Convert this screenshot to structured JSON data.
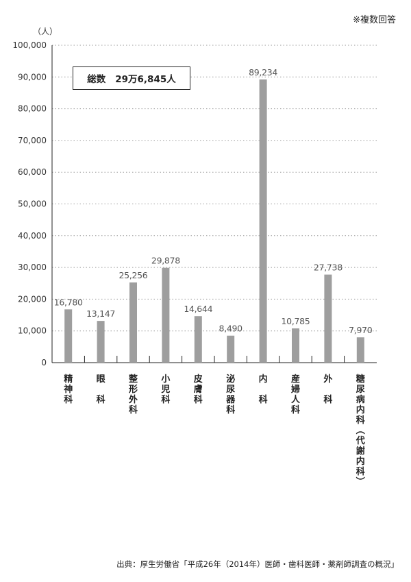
{
  "note": "※複数回答",
  "total_box": {
    "label": "総数",
    "value": "29万6,845人"
  },
  "source": "出典：厚生労働省「平成26年（2014年）医師・歯科医師・薬剤師調査の概況」",
  "chart_data": {
    "type": "bar",
    "unit": "（人）",
    "ylim": [
      0,
      100000
    ],
    "yticks": [
      "0",
      "10,000",
      "20,000",
      "30,000",
      "40,000",
      "50,000",
      "60,000",
      "70,000",
      "80,000",
      "90,000",
      "100,000"
    ],
    "grid": true,
    "categories": [
      "精神科",
      "眼科",
      "整形外科",
      "小児科",
      "皮膚科",
      "泌尿器科",
      "内科",
      "産婦人科",
      "外科",
      "糖尿病内科（代謝内科）"
    ],
    "category_labels": [
      [
        "精",
        "神",
        "科"
      ],
      [
        "眼",
        "",
        "科"
      ],
      [
        "整",
        "形",
        "外",
        "科"
      ],
      [
        "小",
        "児",
        "科"
      ],
      [
        "皮",
        "膚",
        "科"
      ],
      [
        "泌",
        "尿",
        "器",
        "科"
      ],
      [
        "内",
        "",
        "科"
      ],
      [
        "産",
        "婦",
        "人",
        "科"
      ],
      [
        "外",
        "",
        "科"
      ],
      [
        "糖",
        "尿",
        "病",
        "内",
        "科",
        "︵",
        "代",
        "謝",
        "内",
        "科",
        "︶"
      ]
    ],
    "values": [
      16780,
      13147,
      25256,
      29878,
      14644,
      8490,
      89234,
      10785,
      27738,
      7970
    ],
    "value_labels": [
      "16,780",
      "13,147",
      "25,256",
      "29,878",
      "14,644",
      "8,490",
      "89,234",
      "10,785",
      "27,738",
      "7,970"
    ],
    "bar_color": "#9e9e9e"
  }
}
